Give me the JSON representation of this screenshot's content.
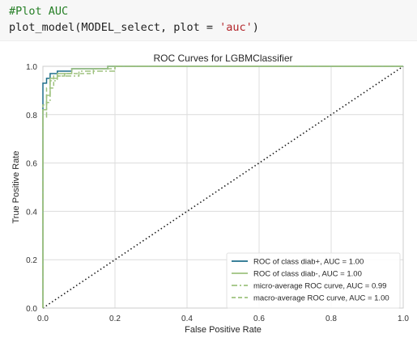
{
  "code": {
    "comment": "#Plot AUC",
    "fn_name": "plot_model",
    "open_paren": "(",
    "arg_model": "MODEL_select",
    "comma_sep": ", ",
    "kw_plot": "plot",
    "equals": " = ",
    "auc_string": "'auc'",
    "close_paren": ")"
  },
  "chart_data": {
    "type": "line",
    "title": "ROC Curves for LGBMClassifier",
    "xlabel": "False Positive Rate",
    "ylabel": "True Positive Rate",
    "xlim": [
      0,
      1
    ],
    "ylim": [
      0,
      1
    ],
    "xticks": [
      "0.0",
      "0.2",
      "0.4",
      "0.6",
      "0.8",
      "1.0"
    ],
    "yticks": [
      "0.0",
      "0.2",
      "0.4",
      "0.6",
      "0.8",
      "1.0"
    ],
    "grid": true,
    "legend_position": "lower-right",
    "series": [
      {
        "name": "ROC of class diab+, AUC = 1.00",
        "color": "#1f6f8b",
        "dash": "solid",
        "x": [
          0,
          0,
          0.01,
          0.01,
          0.02,
          0.02,
          0.04,
          0.04,
          0.08,
          0.08,
          0.18,
          0.18,
          1.0
        ],
        "y": [
          0,
          0.93,
          0.93,
          0.95,
          0.95,
          0.97,
          0.97,
          0.98,
          0.98,
          0.99,
          0.99,
          1.0,
          1.0
        ]
      },
      {
        "name": "ROC of class diab-, AUC = 1.00",
        "color": "#9ec27f",
        "dash": "solid",
        "x": [
          0,
          0,
          0.01,
          0.01,
          0.02,
          0.02,
          0.04,
          0.04,
          0.08,
          0.08,
          0.18,
          0.18,
          1.0
        ],
        "y": [
          0,
          0.82,
          0.82,
          0.88,
          0.88,
          0.95,
          0.95,
          0.97,
          0.97,
          0.99,
          0.99,
          1.0,
          1.0
        ]
      },
      {
        "name": "micro-average ROC curve, AUC = 0.99",
        "color": "#9ec27f",
        "dash": "dashdot",
        "x": [
          0,
          0,
          0.01,
          0.01,
          0.02,
          0.02,
          0.04,
          0.04,
          0.1,
          0.1,
          0.2,
          0.2,
          1.0
        ],
        "y": [
          0,
          0.79,
          0.79,
          0.85,
          0.85,
          0.94,
          0.94,
          0.96,
          0.96,
          0.98,
          0.98,
          1.0,
          1.0
        ]
      },
      {
        "name": "macro-average ROC curve, AUC = 1.00",
        "color": "#9ec27f",
        "dash": "dashed",
        "x": [
          0,
          0,
          0.01,
          0.01,
          0.03,
          0.03,
          0.06,
          0.06,
          0.14,
          0.14,
          0.2,
          0.2,
          1.0
        ],
        "y": [
          0,
          0.84,
          0.84,
          0.91,
          0.91,
          0.96,
          0.96,
          0.97,
          0.97,
          0.99,
          0.99,
          1.0,
          1.0
        ]
      },
      {
        "name": "chance",
        "color": "#1a1a1a",
        "dash": "dotted",
        "legend": false,
        "x": [
          0,
          1
        ],
        "y": [
          0,
          1
        ]
      }
    ]
  }
}
